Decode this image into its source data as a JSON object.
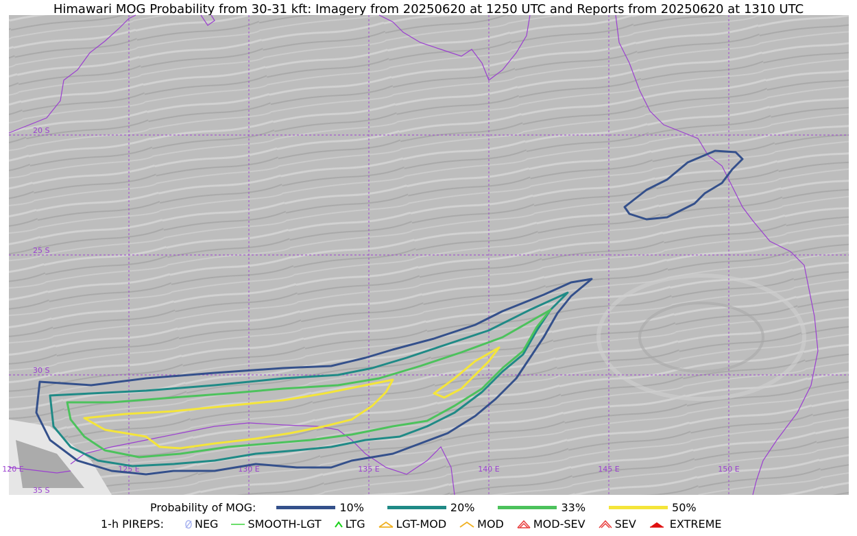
{
  "title": "Himawari MOG Probability from 30-31 kft: Imagery from 20250620 at 1250 UTC and Reports from 20250620 at 1310 UTC",
  "map": {
    "lat_labels": [
      "20 S",
      "25 S",
      "30 S",
      "35 S"
    ],
    "lon_labels": [
      "120 E",
      "125 E",
      "130 E",
      "135 E",
      "140 E",
      "145 E",
      "150 E"
    ],
    "graticule_color": "#9b3fd0",
    "coastline_color": "#9b3fd0",
    "background_color": "#b8b8b8"
  },
  "legend": {
    "probability_label": "Probability of MOG:",
    "probability_levels": [
      {
        "label": "10%",
        "color": "#34508b"
      },
      {
        "label": "20%",
        "color": "#1f8a86"
      },
      {
        "label": "33%",
        "color": "#4cc25c"
      },
      {
        "label": "50%",
        "color": "#f4e53a"
      }
    ],
    "pirep_label": "1-h PIREPS:",
    "pireps": [
      {
        "label": "NEG",
        "icon": "neg-icon",
        "color": "#a9b4f0"
      },
      {
        "label": "SMOOTH-LGT",
        "icon": "smooth-lgt-icon",
        "color": "#3ad33a"
      },
      {
        "label": "LTG",
        "icon": "ltg-icon",
        "color": "#18d018"
      },
      {
        "label": "LGT-MOD",
        "icon": "lgt-mod-icon",
        "color": "#f0b020"
      },
      {
        "label": "MOD",
        "icon": "mod-icon",
        "color": "#f0b020"
      },
      {
        "label": "MOD-SEV",
        "icon": "mod-sev-icon",
        "color": "#e83a3a"
      },
      {
        "label": "SEV",
        "icon": "sev-icon",
        "color": "#e83a3a"
      },
      {
        "label": "EXTREME",
        "icon": "extreme-icon",
        "color": "#e01010"
      }
    ]
  }
}
